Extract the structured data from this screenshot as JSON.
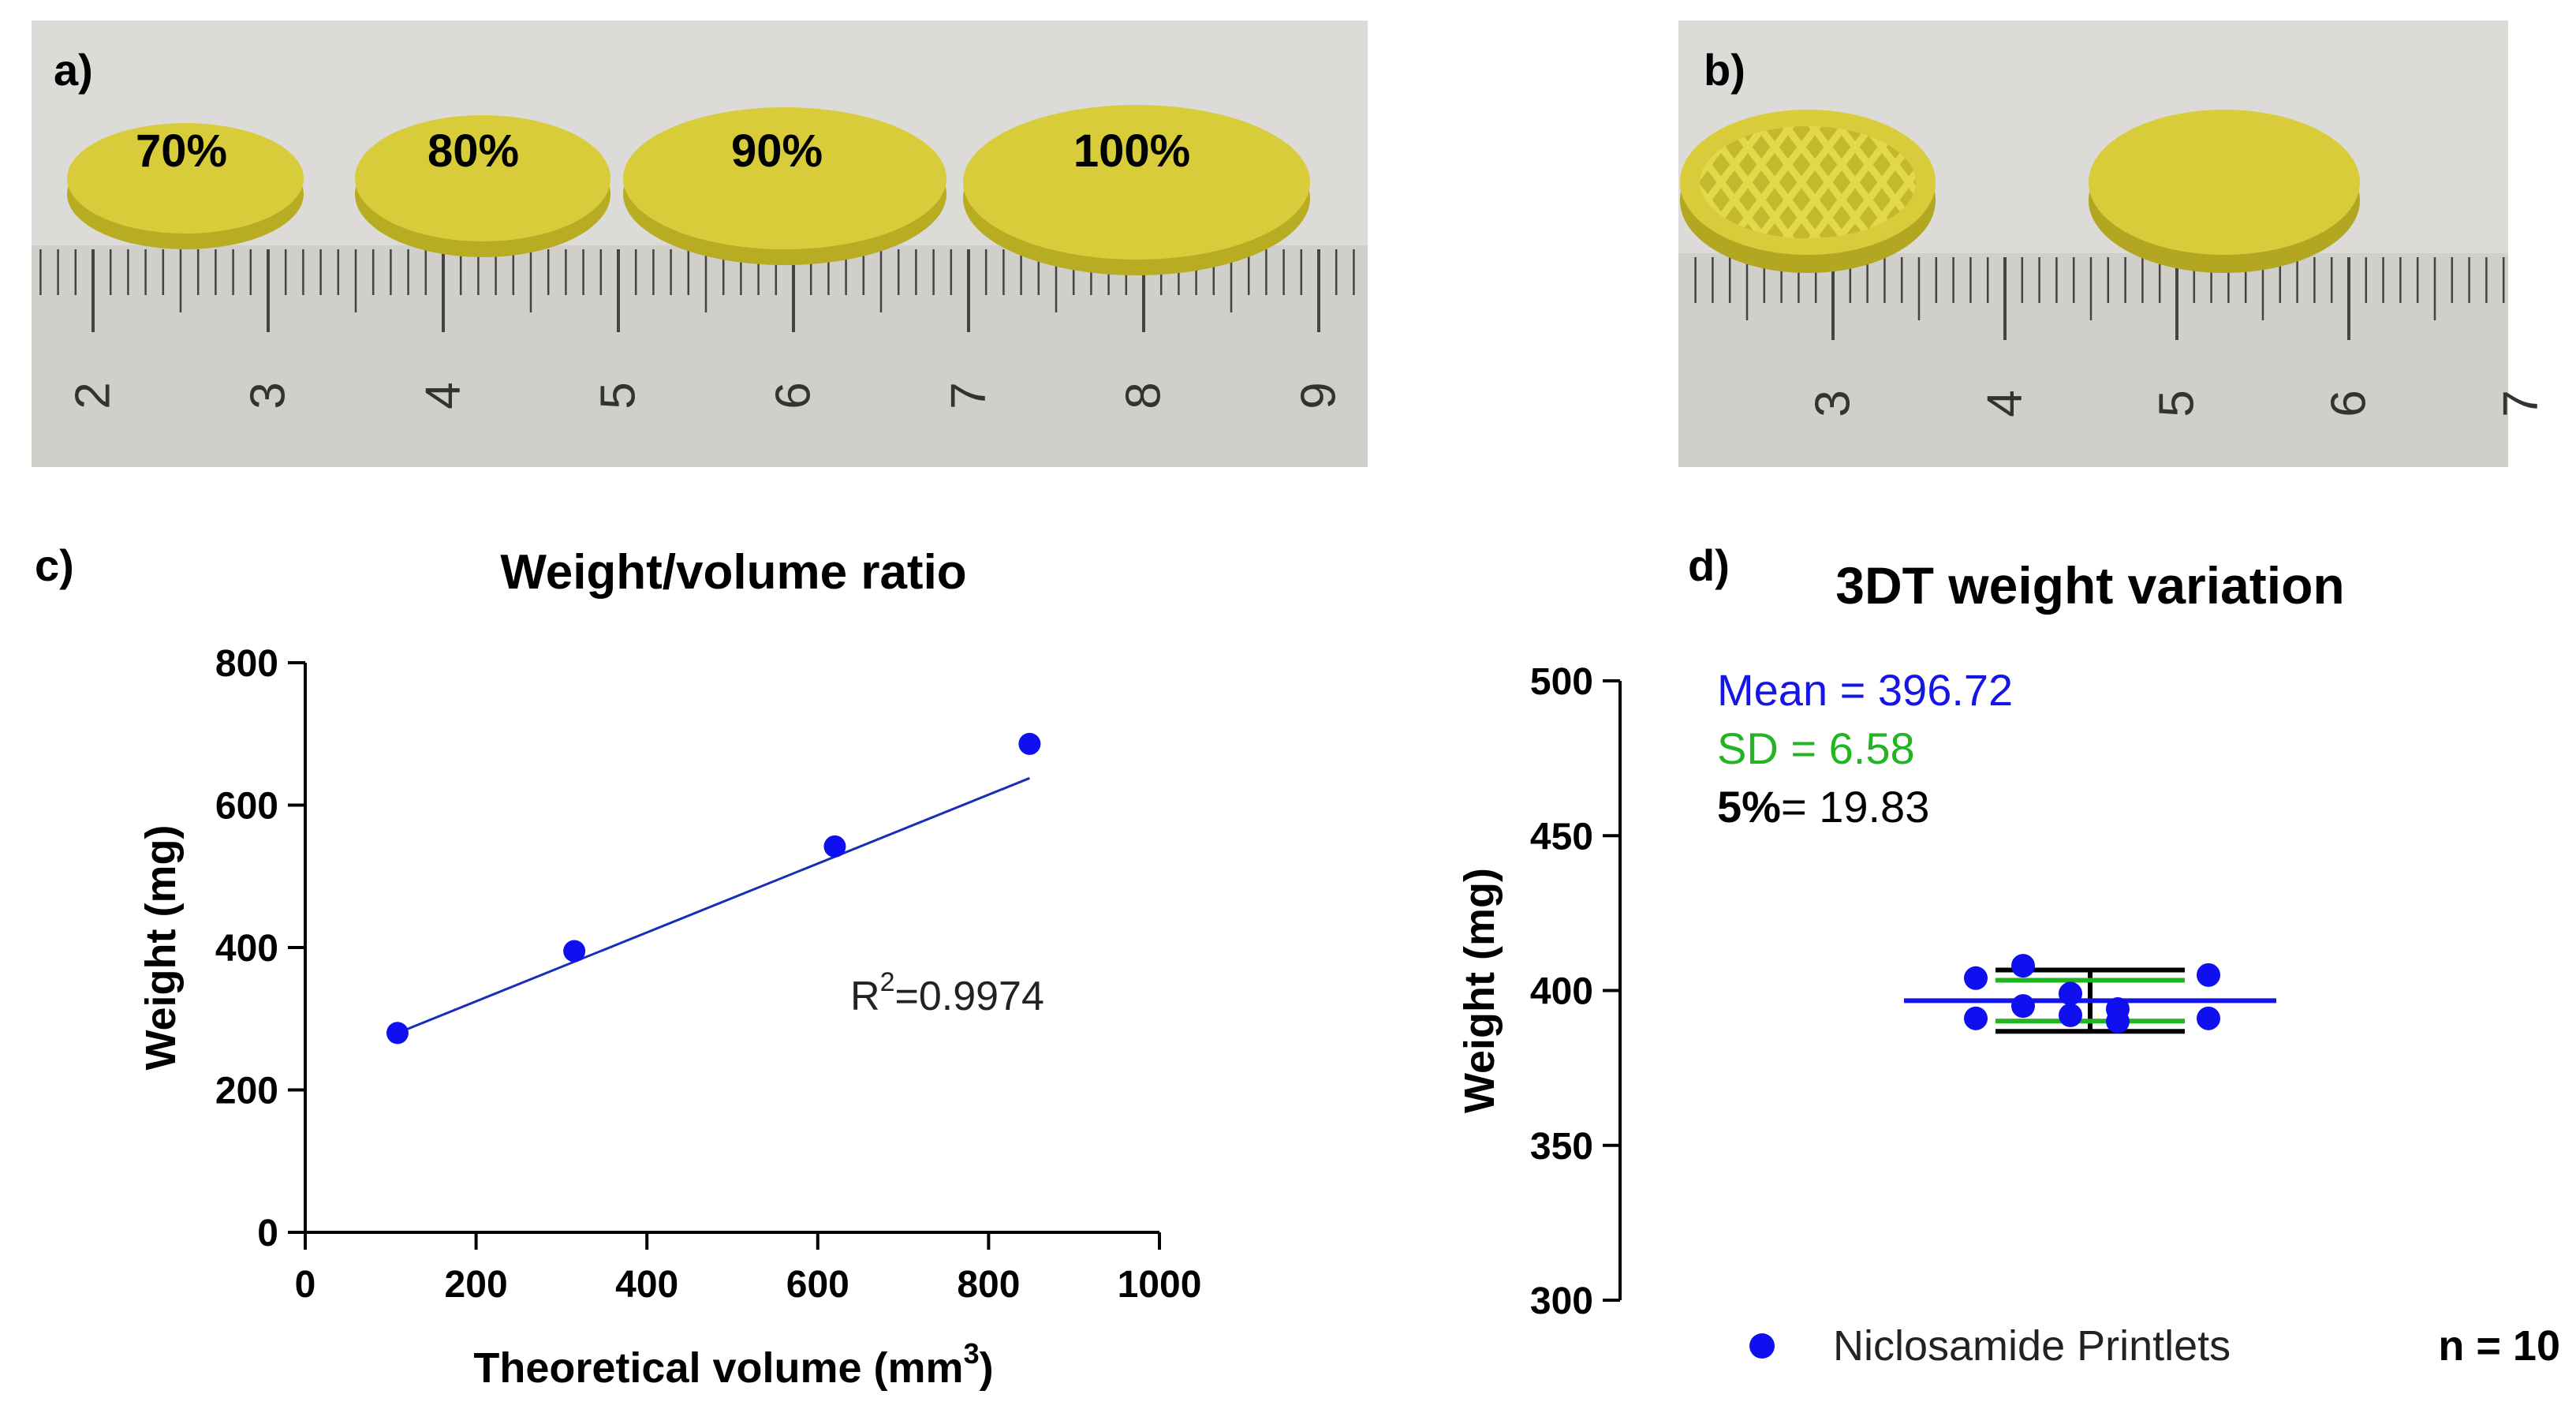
{
  "panels": {
    "a": {
      "label": "a)",
      "tablet_labels": [
        "70%",
        "80%",
        "90%",
        "100%"
      ],
      "ruler_numbers": [
        "2",
        "3",
        "4",
        "5",
        "6",
        "7",
        "8",
        "9"
      ]
    },
    "b": {
      "label": "b)",
      "ruler_numbers": [
        "3",
        "4",
        "5",
        "6",
        "7"
      ]
    },
    "c": {
      "label": "c)"
    },
    "d": {
      "label": "d)"
    }
  },
  "colors": {
    "tablet": "#d8cc3a",
    "tablet_dark": "#b8ac22",
    "ruler": "#d2d1cc",
    "photo_bg": "#d9d8d4",
    "points": "#0f0ff0",
    "fit_line": "#1a2db8",
    "mean_line": "#1515e6",
    "sd_line": "#22b422",
    "limit_line": "#000000"
  },
  "chart_data": [
    {
      "type": "scatter",
      "title": "Weight/volume ratio",
      "xlabel": "Theoretical volume (mm",
      "xlabel_sup": "3",
      "xlabel_end": ")",
      "ylabel": "Weight (mg)",
      "xlim": [
        0,
        1000
      ],
      "ylim": [
        0,
        800
      ],
      "xticks": [
        0,
        200,
        400,
        600,
        800,
        1000
      ],
      "yticks": [
        0,
        200,
        400,
        600,
        800
      ],
      "x": [
        108,
        315,
        620,
        848
      ],
      "y": [
        280,
        395,
        542,
        686
      ],
      "fit": {
        "slope": 0.4837,
        "intercept": 227.7
      },
      "annotation": {
        "prefix": "R",
        "sup": "2",
        "value": "=0.9974"
      }
    },
    {
      "type": "scatter",
      "title": "3DT weight variation",
      "ylabel": "Weight (mg)",
      "ylim": [
        300,
        500
      ],
      "yticks": [
        300,
        350,
        400,
        450,
        500
      ],
      "series_name": "Niclosamide Printlets",
      "n_label": "n = 10",
      "points": [
        {
          "offset": -0.58,
          "y": 404
        },
        {
          "offset": -0.58,
          "y": 391
        },
        {
          "offset": -0.34,
          "y": 408
        },
        {
          "offset": -0.34,
          "y": 395
        },
        {
          "offset": -0.1,
          "y": 399
        },
        {
          "offset": -0.1,
          "y": 392
        },
        {
          "offset": 0.14,
          "y": 394
        },
        {
          "offset": 0.14,
          "y": 390
        },
        {
          "offset": 0.6,
          "y": 405
        },
        {
          "offset": 0.6,
          "y": 391
        }
      ],
      "mean": 396.72,
      "sd": 6.58,
      "five_percent": 19.83,
      "mean_label": "Mean = 396.72",
      "sd_label": "SD = 6.58",
      "five_label_bold": "5%",
      "five_label_rest": "= 19.83"
    }
  ]
}
